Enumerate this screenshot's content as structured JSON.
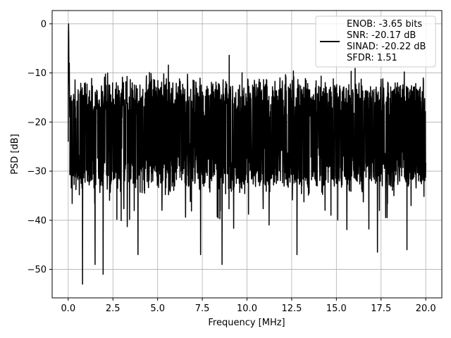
{
  "chart_data": {
    "type": "line",
    "title": "",
    "xlabel": "Frequency [MHz]",
    "ylabel": "PSD [dB]",
    "xlim": [
      -0.9,
      20.9
    ],
    "ylim": [
      -55.8,
      2.7
    ],
    "grid": true,
    "x_ticks": [
      0.0,
      2.5,
      5.0,
      7.5,
      10.0,
      12.5,
      15.0,
      17.5,
      20.0
    ],
    "x_tick_labels": [
      "0.0",
      "2.5",
      "5.0",
      "7.5",
      "10.0",
      "12.5",
      "15.0",
      "17.5",
      "20.0"
    ],
    "y_ticks": [
      0,
      -10,
      -20,
      -30,
      -40,
      -50
    ],
    "y_tick_labels": [
      "0",
      "−10",
      "−20",
      "−30",
      "−40",
      "−50"
    ],
    "legend": {
      "placement": "top-right",
      "entries": [
        "ENOB: -3.65 bits",
        "SNR: -20.17 dB",
        "SINAD: -20.22 dB",
        "SFDR: 1.51"
      ]
    },
    "series": [
      {
        "color": "#000000",
        "x_start": 0.0,
        "x_end": 20.0,
        "num_points": 2000,
        "peak": {
          "x": 0.02,
          "y": 0.0
        },
        "noise_floor_mean_db": -20.2,
        "typical_upper_db": -14.0,
        "typical_lower_db": -31.0,
        "sample_maxima": [
          {
            "x": 2.2,
            "y": -10.0
          },
          {
            "x": 9.0,
            "y": -6.4
          },
          {
            "x": 5.6,
            "y": -8.4
          },
          {
            "x": 12.6,
            "y": -9.6
          },
          {
            "x": 18.8,
            "y": -9.8
          }
        ],
        "sample_minima": [
          {
            "x": 0.8,
            "y": -53.0
          },
          {
            "x": 1.5,
            "y": -49.0
          },
          {
            "x": 1.95,
            "y": -51.0
          },
          {
            "x": 8.6,
            "y": -49.0
          },
          {
            "x": 12.8,
            "y": -47.0
          },
          {
            "x": 18.95,
            "y": -46.0
          },
          {
            "x": 17.3,
            "y": -46.5
          },
          {
            "x": 7.4,
            "y": -47.0
          },
          {
            "x": 3.9,
            "y": -47.0
          }
        ]
      }
    ]
  }
}
